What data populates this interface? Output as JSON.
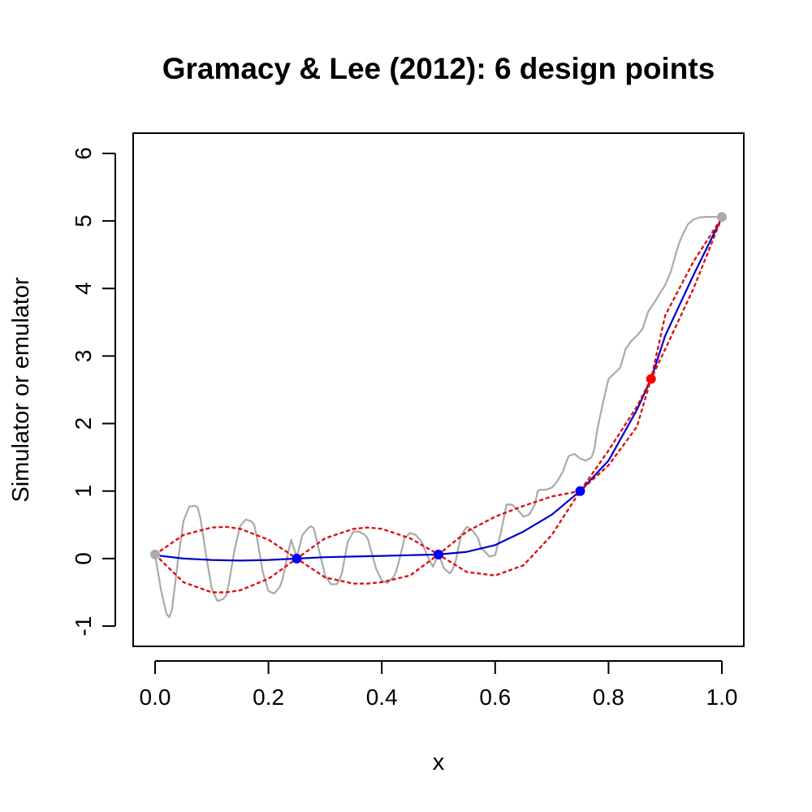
{
  "chart_data": {
    "type": "line",
    "title": "Gramacy & Lee (2012):  6 design points",
    "xlabel": "x",
    "ylabel": "Simulator or emulator",
    "xlim": [
      0,
      1
    ],
    "ylim": [
      -1.3,
      6.3
    ],
    "xticks": [
      0,
      0.2,
      0.4,
      0.6,
      0.8,
      1
    ],
    "xtick_labels": [
      "0.0",
      "0.2",
      "0.4",
      "0.6",
      "0.8",
      "1.0"
    ],
    "yticks": [
      -1,
      0,
      1,
      2,
      3,
      4,
      5,
      6
    ],
    "ytick_labels": [
      "-1",
      "0",
      "1",
      "2",
      "3",
      "4",
      "5",
      "6"
    ],
    "grid": false,
    "series": [
      {
        "role": "simulator",
        "color": "#aaaaaa",
        "style": "solid",
        "x": [
          0,
          0.01,
          0.02,
          0.025,
          0.03,
          0.04,
          0.05,
          0.06,
          0.07,
          0.075,
          0.08,
          0.09,
          0.1,
          0.11,
          0.12,
          0.125,
          0.13,
          0.14,
          0.15,
          0.16,
          0.17,
          0.175,
          0.18,
          0.19,
          0.2,
          0.21,
          0.22,
          0.225,
          0.23,
          0.24,
          0.25,
          0.26,
          0.27,
          0.275,
          0.28,
          0.29,
          0.3,
          0.31,
          0.32,
          0.325,
          0.33,
          0.34,
          0.35,
          0.36,
          0.37,
          0.375,
          0.38,
          0.39,
          0.4,
          0.41,
          0.42,
          0.425,
          0.43,
          0.44,
          0.45,
          0.46,
          0.47,
          0.475,
          0.48,
          0.49,
          0.5,
          0.51,
          0.52,
          0.525,
          0.53,
          0.54,
          0.55,
          0.56,
          0.57,
          0.575,
          0.58,
          0.59,
          0.6,
          0.61,
          0.62,
          0.625,
          0.63,
          0.64,
          0.65,
          0.66,
          0.67,
          0.675,
          0.68,
          0.69,
          0.7,
          0.71,
          0.72,
          0.725,
          0.73,
          0.74,
          0.75,
          0.76,
          0.77,
          0.775,
          0.78,
          0.79,
          0.8,
          0.81,
          0.82,
          0.825,
          0.83,
          0.84,
          0.85,
          0.86,
          0.87,
          0.875,
          0.88,
          0.89,
          0.9,
          0.91,
          0.92,
          0.925,
          0.93,
          0.94,
          0.95,
          0.96,
          0.97,
          0.975,
          0.98,
          0.99,
          1
        ],
        "y": [
          0.06,
          -0.45,
          -0.82,
          -0.87,
          -0.75,
          -0.05,
          0.55,
          0.77,
          0.78,
          0.76,
          0.6,
          0.05,
          -0.45,
          -0.63,
          -0.6,
          -0.55,
          -0.38,
          0.12,
          0.48,
          0.58,
          0.55,
          0.5,
          0.3,
          -0.2,
          -0.48,
          -0.52,
          -0.42,
          -0.3,
          -0.1,
          0.28,
          0.02,
          0.35,
          0.45,
          0.48,
          0.45,
          0.1,
          -0.25,
          -0.38,
          -0.38,
          -0.32,
          -0.2,
          0.25,
          0.4,
          0.4,
          0.35,
          0.3,
          0.15,
          -0.15,
          -0.33,
          -0.36,
          -0.28,
          -0.2,
          -0.05,
          0.3,
          0.38,
          0.35,
          0.25,
          0.15,
          0.05,
          -0.12,
          0.06,
          -0.15,
          -0.22,
          -0.16,
          -0.05,
          0.35,
          0.47,
          0.42,
          0.3,
          0.15,
          0.12,
          0.03,
          0.05,
          0.38,
          0.8,
          0.8,
          0.8,
          0.72,
          0.62,
          0.65,
          0.8,
          1.0,
          1.02,
          1.02,
          1.05,
          1.15,
          1.3,
          1.42,
          1.52,
          1.55,
          1.48,
          1.45,
          1.5,
          1.62,
          1.9,
          2.3,
          2.66,
          2.74,
          2.82,
          2.95,
          3.1,
          3.22,
          3.3,
          3.4,
          3.66,
          3.72,
          3.78,
          3.92,
          4.05,
          4.25,
          4.55,
          4.68,
          4.78,
          4.95,
          5.02,
          5.05,
          5.06,
          5.06,
          5.06,
          5.06,
          5.06
        ]
      },
      {
        "role": "emulator-mean",
        "color": "#0000cc",
        "style": "solid",
        "x": [
          0,
          0.05,
          0.1,
          0.15,
          0.2,
          0.25,
          0.3,
          0.35,
          0.4,
          0.45,
          0.5,
          0.55,
          0.6,
          0.65,
          0.7,
          0.75,
          0.8,
          0.85,
          0.875,
          0.9,
          0.95,
          1
        ],
        "y": [
          0.05,
          0.0,
          -0.02,
          -0.03,
          -0.02,
          0.0,
          0.02,
          0.03,
          0.04,
          0.05,
          0.06,
          0.1,
          0.2,
          0.4,
          0.65,
          1.0,
          1.45,
          2.2,
          2.66,
          3.3,
          4.2,
          5.05
        ]
      },
      {
        "role": "emulator-upper",
        "color": "#dd1111",
        "style": "dotted",
        "x": [
          0,
          0.05,
          0.1,
          0.125,
          0.15,
          0.2,
          0.25,
          0.3,
          0.35,
          0.375,
          0.4,
          0.45,
          0.5,
          0.55,
          0.6,
          0.65,
          0.7,
          0.75,
          0.8,
          0.85,
          0.875,
          0.9,
          0.95,
          1
        ],
        "y": [
          0.06,
          0.35,
          0.46,
          0.47,
          0.44,
          0.28,
          0.0,
          0.3,
          0.44,
          0.46,
          0.44,
          0.3,
          0.06,
          0.4,
          0.62,
          0.78,
          0.92,
          1.0,
          1.38,
          1.95,
          2.66,
          3.6,
          4.4,
          5.05
        ]
      },
      {
        "role": "emulator-lower",
        "color": "#dd1111",
        "style": "dotted",
        "x": [
          0,
          0.05,
          0.1,
          0.125,
          0.15,
          0.2,
          0.25,
          0.3,
          0.35,
          0.375,
          0.4,
          0.45,
          0.5,
          0.55,
          0.6,
          0.65,
          0.7,
          0.75,
          0.8,
          0.85,
          0.875,
          0.9,
          0.95,
          1
        ],
        "y": [
          0.06,
          -0.35,
          -0.5,
          -0.5,
          -0.47,
          -0.3,
          0.0,
          -0.28,
          -0.37,
          -0.37,
          -0.35,
          -0.25,
          0.06,
          -0.2,
          -0.25,
          -0.1,
          0.35,
          1.0,
          1.6,
          2.25,
          2.66,
          3.1,
          4.0,
          5.05
        ]
      }
    ],
    "points": [
      {
        "x": 0,
        "y": 0.06,
        "color": "#aaaaaa"
      },
      {
        "x": 0.25,
        "y": 0.0,
        "color": "#0000ff"
      },
      {
        "x": 0.5,
        "y": 0.06,
        "color": "#0000ff"
      },
      {
        "x": 0.75,
        "y": 1.0,
        "color": "#0000ff"
      },
      {
        "x": 0.875,
        "y": 2.66,
        "color": "#ff0000"
      },
      {
        "x": 1,
        "y": 5.06,
        "color": "#aaaaaa"
      }
    ]
  }
}
